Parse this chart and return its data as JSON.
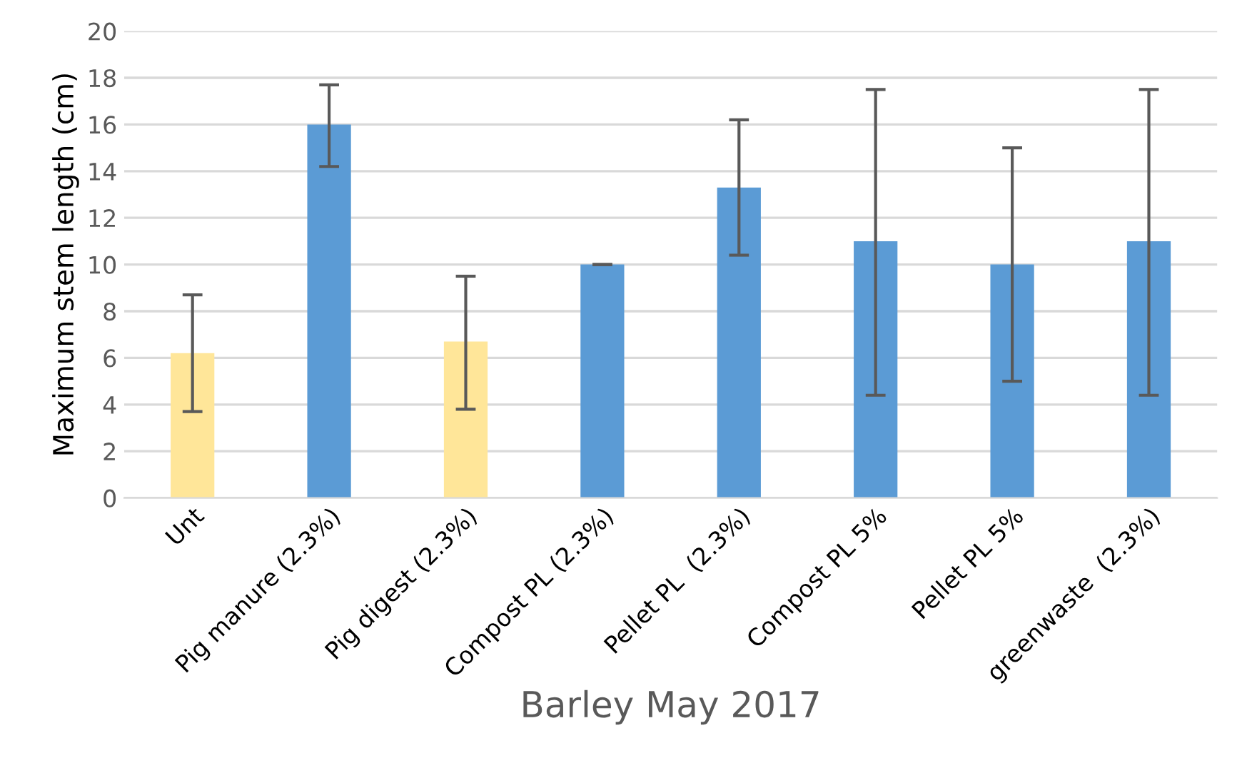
{
  "chart_data": {
    "type": "bar",
    "xlabel": "Barley May 2017",
    "ylabel": "Maximum stem length (cm)",
    "categories": [
      "Unt",
      "Pig manure (2.3%)",
      "Pig digest (2.3%)",
      "Compost PL (2.3%)",
      "Pellet PL  (2.3%)",
      "Compost PL 5%",
      "Pellet PL 5%",
      "greenwaste  (2.3%)"
    ],
    "values": [
      6.2,
      16.0,
      6.7,
      10.0,
      13.3,
      11.0,
      10.0,
      11.0
    ],
    "colors": [
      "#ffe699",
      "#5b9bd5",
      "#ffe699",
      "#5b9bd5",
      "#5b9bd5",
      "#5b9bd5",
      "#5b9bd5",
      "#5b9bd5"
    ],
    "errors": [
      [
        3.7,
        8.7
      ],
      [
        14.2,
        17.7
      ],
      [
        3.8,
        9.5
      ],
      [
        10.0,
        10.0
      ],
      [
        10.4,
        16.2
      ],
      [
        4.4,
        17.5
      ],
      [
        5.0,
        15.0
      ],
      [
        4.4,
        17.5
      ]
    ],
    "ylim": [
      0,
      20
    ],
    "yticks": [
      0,
      2,
      4,
      6,
      8,
      10,
      12,
      14,
      16,
      18,
      20
    ],
    "grid": "y",
    "legend": false
  }
}
